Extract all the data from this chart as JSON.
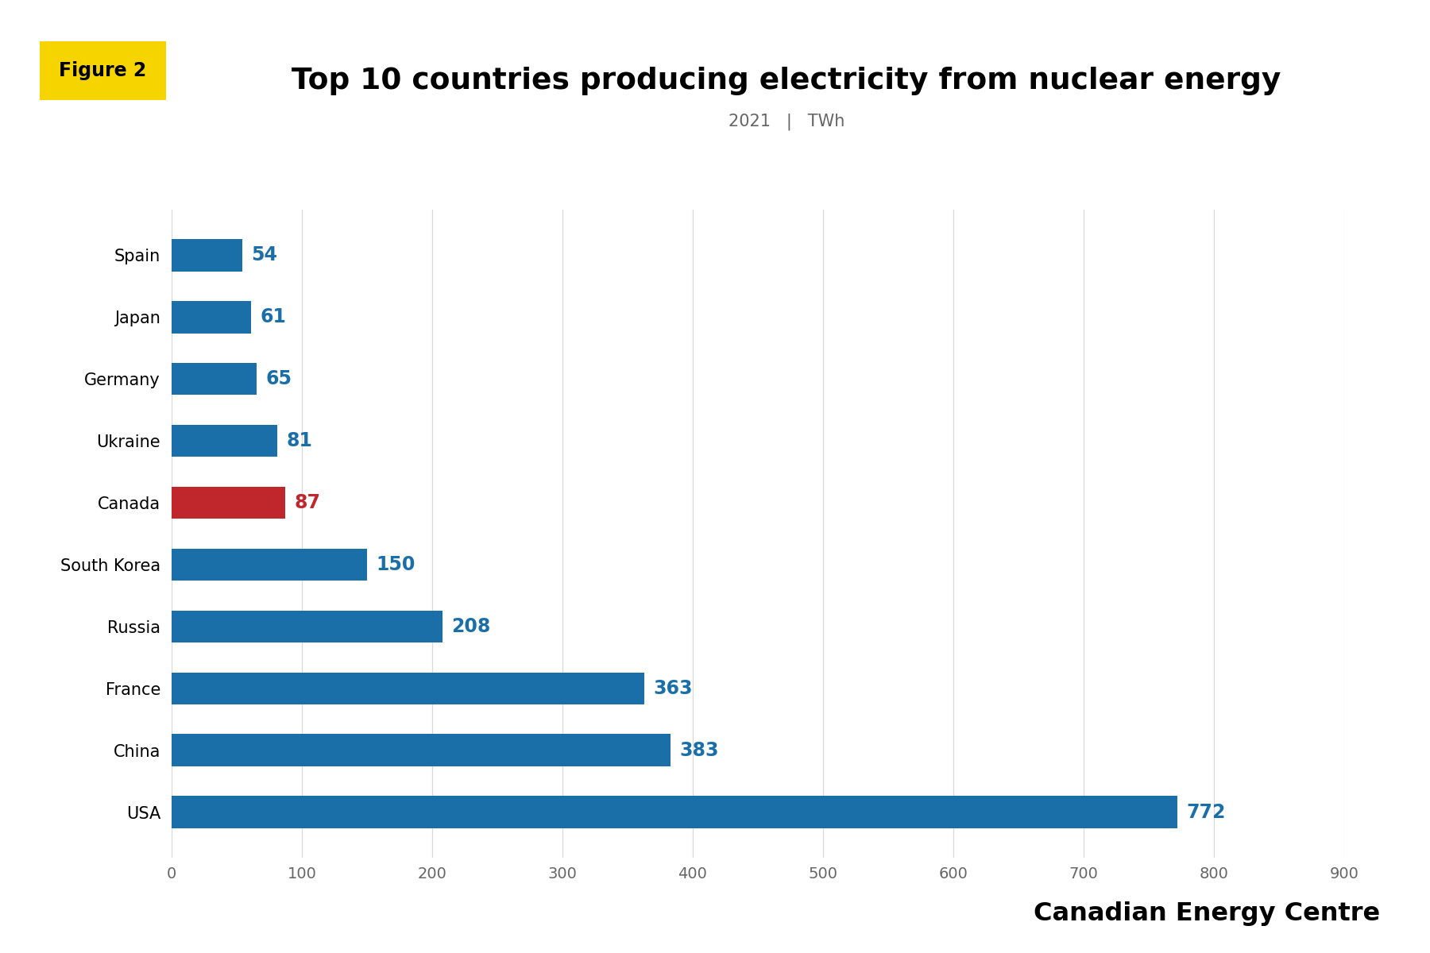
{
  "title": "Top 10 countries producing electricity from nuclear energy",
  "subtitle_year": "2021",
  "subtitle_unit": "TWh",
  "figure_label": "Figure 2",
  "countries": [
    "Spain",
    "Japan",
    "Germany",
    "Ukraine",
    "Canada",
    "South Korea",
    "Russia",
    "France",
    "China",
    "USA"
  ],
  "values": [
    54,
    61,
    65,
    81,
    87,
    150,
    208,
    363,
    383,
    772
  ],
  "bar_colors": [
    "#1a6fa8",
    "#1a6fa8",
    "#1a6fa8",
    "#1a6fa8",
    "#c0272d",
    "#1a6fa8",
    "#1a6fa8",
    "#1a6fa8",
    "#1a6fa8",
    "#1a6fa8"
  ],
  "value_colors": [
    "#1a6fa8",
    "#1a6fa8",
    "#1a6fa8",
    "#1a6fa8",
    "#c0272d",
    "#1a6fa8",
    "#1a6fa8",
    "#1a6fa8",
    "#1a6fa8",
    "#1a6fa8"
  ],
  "xlim": [
    0,
    900
  ],
  "xticks": [
    0,
    100,
    200,
    300,
    400,
    500,
    600,
    700,
    800,
    900
  ],
  "figure_label_bg": "#f5d400",
  "figure_label_color": "#000000",
  "title_color": "#000000",
  "subtitle_color": "#666666",
  "tick_label_color": "#666666",
  "country_label_color": "#000000",
  "watermark": "Canadian Energy Centre",
  "background_color": "#ffffff"
}
